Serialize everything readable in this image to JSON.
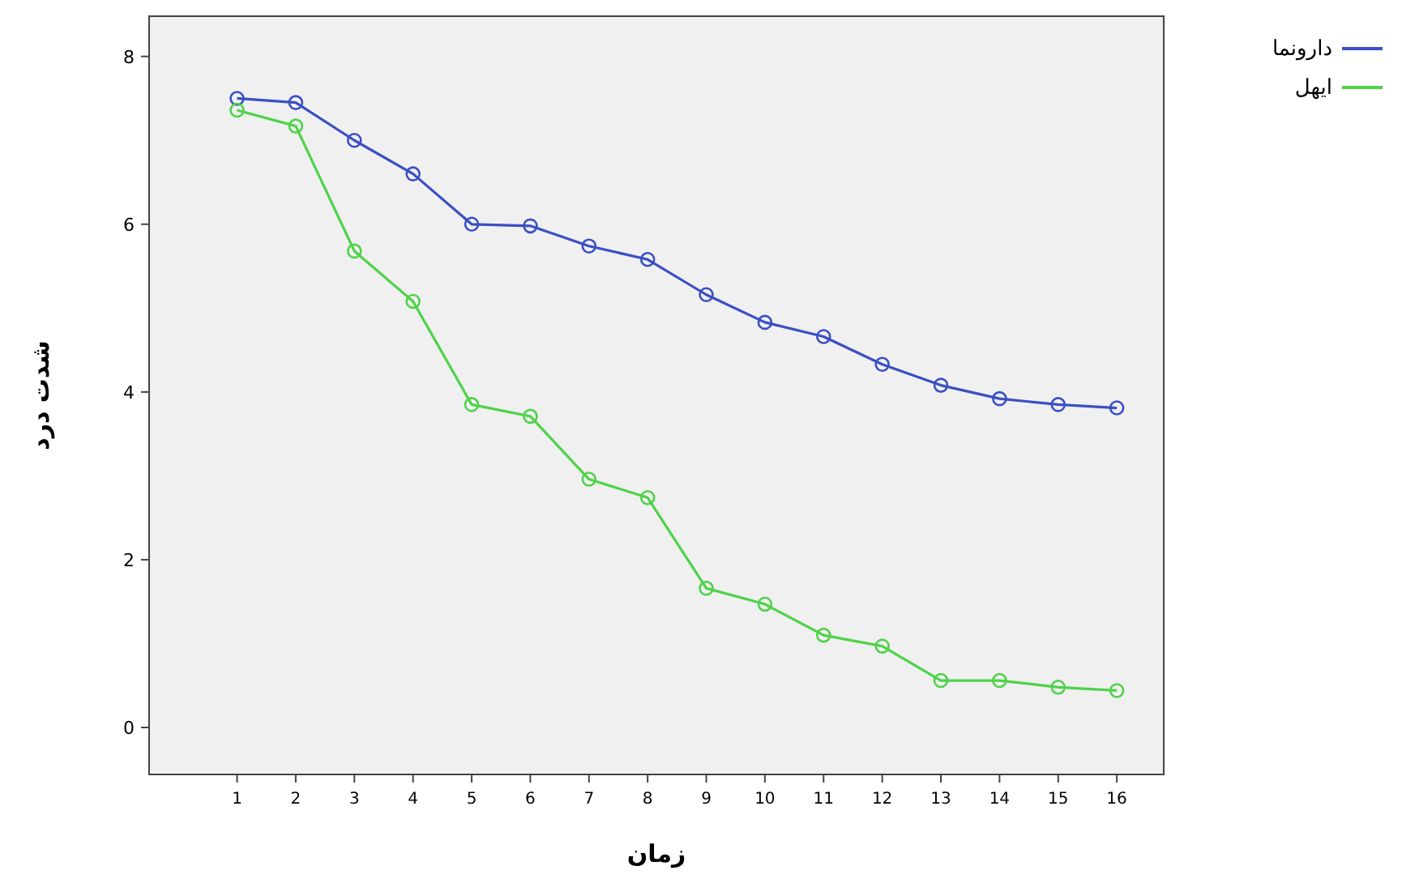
{
  "chart_data": {
    "type": "line",
    "xlabel": "زمان",
    "ylabel": "شدت درد",
    "x": [
      1,
      2,
      3,
      4,
      5,
      6,
      7,
      8,
      9,
      10,
      11,
      12,
      13,
      14,
      15,
      16
    ],
    "series": [
      {
        "name": "دارونما",
        "color": "#3a4fc4",
        "values": [
          7.5,
          7.45,
          7.0,
          6.6,
          6.0,
          5.98,
          5.74,
          5.58,
          5.16,
          4.83,
          4.66,
          4.33,
          4.08,
          3.92,
          3.85,
          3.81
        ]
      },
      {
        "name": "ایهل",
        "color": "#4fd24a",
        "values": [
          7.36,
          7.17,
          5.68,
          5.08,
          3.85,
          3.71,
          2.96,
          2.74,
          1.66,
          1.47,
          1.1,
          0.97,
          0.56,
          0.56,
          0.48,
          0.44
        ]
      }
    ],
    "xlim": [
      -0.5,
      16.8
    ],
    "xticks": [
      1,
      2,
      3,
      4,
      5,
      6,
      7,
      8,
      9,
      10,
      11,
      12,
      13,
      14,
      15,
      16
    ],
    "ylim": [
      -0.56,
      8.48
    ],
    "yticks": [
      0,
      2,
      4,
      6,
      8
    ],
    "marker": "circle",
    "line_style": "solid",
    "grid": false,
    "legend": "top right"
  }
}
